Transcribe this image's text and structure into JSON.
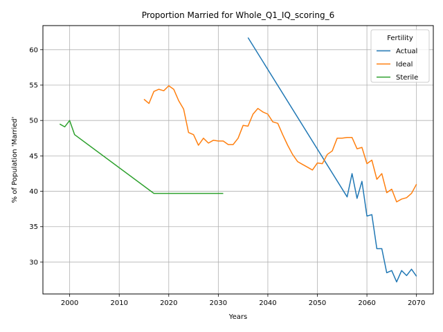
{
  "chart_data": {
    "type": "line",
    "title": "Proportion Married for Whole_Q1_IQ_scoring_6",
    "xlabel": "Years",
    "ylabel": "% of Population 'Married'",
    "xlim": [
      1994.6,
      2073.4
    ],
    "ylim": [
      25.5,
      63.4
    ],
    "xticks": [
      2000,
      2010,
      2020,
      2030,
      2040,
      2050,
      2060,
      2070
    ],
    "yticks": [
      30,
      35,
      40,
      45,
      50,
      55,
      60
    ],
    "grid": true,
    "legend": {
      "title": "Fertility",
      "placement": "top-right"
    },
    "series": [
      {
        "name": "Actual",
        "color": "#1f77b4",
        "x": [
          2036,
          2056,
          2057,
          2058,
          2059,
          2060,
          2061,
          2062,
          2063,
          2064,
          2065,
          2066,
          2067,
          2068,
          2069,
          2070
        ],
        "y": [
          61.7,
          39.2,
          42.5,
          39.0,
          41.4,
          36.5,
          36.7,
          31.9,
          31.9,
          28.5,
          28.8,
          27.2,
          28.8,
          28.1,
          29.0,
          28.0
        ]
      },
      {
        "name": "Ideal",
        "color": "#ff7f0e",
        "x": [
          2015,
          2016,
          2017,
          2018,
          2019,
          2020,
          2021,
          2022,
          2023,
          2024,
          2025,
          2026,
          2027,
          2028,
          2029,
          2030,
          2031,
          2032,
          2033,
          2034,
          2035,
          2036,
          2037,
          2038,
          2039,
          2040,
          2041,
          2042,
          2043,
          2044,
          2045,
          2046,
          2047,
          2048,
          2049,
          2050,
          2051,
          2052,
          2053,
          2054,
          2055,
          2056,
          2057,
          2058,
          2059,
          2060,
          2061,
          2062,
          2063,
          2064,
          2065,
          2066,
          2067,
          2068,
          2069,
          2070
        ],
        "y": [
          53.0,
          52.4,
          54.1,
          54.4,
          54.2,
          54.9,
          54.4,
          52.8,
          51.6,
          48.3,
          48.0,
          46.5,
          47.5,
          46.8,
          47.2,
          47.1,
          47.1,
          46.6,
          46.6,
          47.5,
          49.3,
          49.2,
          50.9,
          51.7,
          51.2,
          50.9,
          49.8,
          49.6,
          48.0,
          46.5,
          45.2,
          44.2,
          43.8,
          43.4,
          43.0,
          44.0,
          43.9,
          45.2,
          45.7,
          47.5,
          47.5,
          47.6,
          47.6,
          46.0,
          46.2,
          43.9,
          44.4,
          41.7,
          42.5,
          39.8,
          40.3,
          38.5,
          38.9,
          39.1,
          39.7,
          41.0
        ]
      },
      {
        "name": "Sterile",
        "color": "#2ca02c",
        "x": [
          1998,
          1999,
          2000,
          2001,
          2017,
          2031
        ],
        "y": [
          49.5,
          49.1,
          50.0,
          48.0,
          39.7,
          39.7
        ]
      }
    ]
  }
}
